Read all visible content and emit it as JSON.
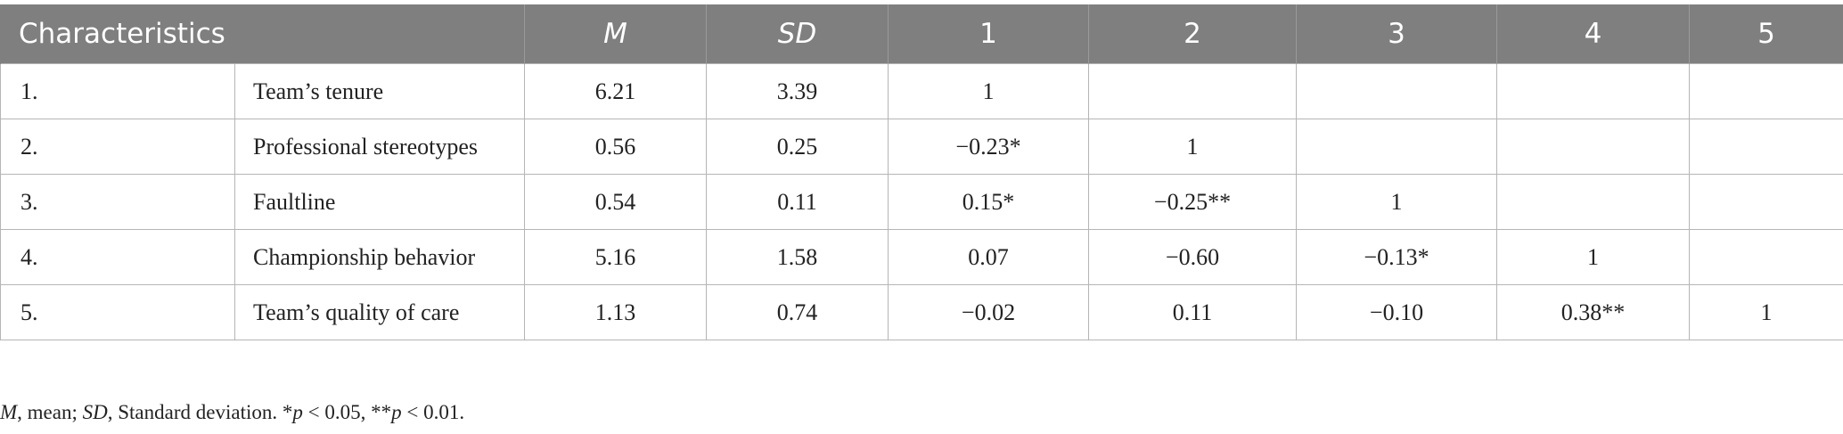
{
  "table": {
    "headers": {
      "characteristics": "Characteristics",
      "m": "M",
      "sd": "SD",
      "c1": "1",
      "c2": "2",
      "c3": "3",
      "c4": "4",
      "c5": "5"
    },
    "rows": [
      {
        "num": "1.",
        "label": "Team’s tenure",
        "m": "6.21",
        "sd": "3.39",
        "c1": "1",
        "c2": "",
        "c3": "",
        "c4": "",
        "c5": ""
      },
      {
        "num": "2.",
        "label": "Professional stereotypes",
        "m": "0.56",
        "sd": "0.25",
        "c1": "−0.23*",
        "c2": "1",
        "c3": "",
        "c4": "",
        "c5": ""
      },
      {
        "num": "3.",
        "label": "Faultline",
        "m": "0.54",
        "sd": "0.11",
        "c1": "0.15*",
        "c2": "−0.25**",
        "c3": "1",
        "c4": "",
        "c5": ""
      },
      {
        "num": "4.",
        "label": "Championship behavior",
        "m": "5.16",
        "sd": "1.58",
        "c1": "0.07",
        "c2": "−0.60",
        "c3": "−0.13*",
        "c4": "1",
        "c5": ""
      },
      {
        "num": "5.",
        "label": "Team’s quality of care",
        "m": "1.13",
        "sd": "0.74",
        "c1": "−0.02",
        "c2": "0.11",
        "c3": "−0.10",
        "c4": "0.38**",
        "c5": "1"
      }
    ]
  },
  "note": {
    "m_symbol": "M",
    "m_def": ", mean; ",
    "sd_symbol": "SD",
    "sd_def": ", Standard deviation. *",
    "p1_symbol": "p",
    "p1_def": " < 0.05, **",
    "p2_symbol": "p",
    "p2_def": " < 0.01."
  }
}
